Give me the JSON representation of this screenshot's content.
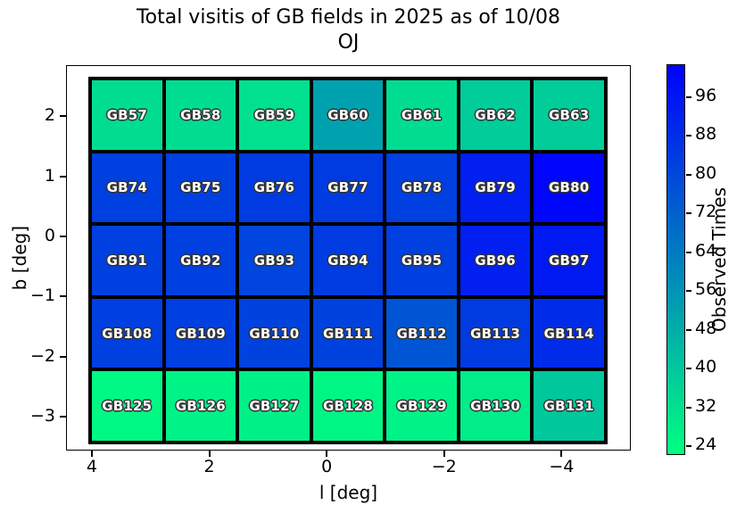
{
  "chart_data": {
    "type": "heatmap",
    "title_line1": "Total visitis of GB fields in 2025 as of 10/08",
    "title_line2": "OJ",
    "xlabel": "l [deg]",
    "ylabel": "b [deg]",
    "colorbar_label": "Observed Times",
    "colormap": "winter_r",
    "colormap_bottom_color": "#00ff80",
    "colormap_top_color": "#0000ff",
    "vmin": 22.2,
    "vmax": 102.8,
    "xlim": [
      4.44,
      -5.18
    ],
    "ylim": [
      -3.56,
      2.85
    ],
    "xticks": [
      4,
      2,
      0,
      -2,
      -4
    ],
    "yticks": [
      2,
      1,
      0,
      -1,
      -2,
      -3
    ],
    "colorbar_ticks": [
      24,
      32,
      40,
      48,
      56,
      64,
      72,
      80,
      88,
      96
    ],
    "grid_extent": {
      "x_left": 4.06,
      "x_right": -4.78,
      "y_top": 2.65,
      "y_bottom": -3.46
    },
    "rows": [
      {
        "cells": [
          {
            "label": "GB57",
            "value": 33
          },
          {
            "label": "GB58",
            "value": 33
          },
          {
            "label": "GB59",
            "value": 32
          },
          {
            "label": "GB60",
            "value": 52
          },
          {
            "label": "GB61",
            "value": 33
          },
          {
            "label": "GB62",
            "value": 38
          },
          {
            "label": "GB63",
            "value": 38
          }
        ]
      },
      {
        "cells": [
          {
            "label": "GB74",
            "value": 83
          },
          {
            "label": "GB75",
            "value": 83
          },
          {
            "label": "GB76",
            "value": 84
          },
          {
            "label": "GB77",
            "value": 84
          },
          {
            "label": "GB78",
            "value": 83
          },
          {
            "label": "GB79",
            "value": 93
          },
          {
            "label": "GB80",
            "value": 101
          }
        ]
      },
      {
        "cells": [
          {
            "label": "GB91",
            "value": 83
          },
          {
            "label": "GB92",
            "value": 83
          },
          {
            "label": "GB93",
            "value": 81
          },
          {
            "label": "GB94",
            "value": 84
          },
          {
            "label": "GB95",
            "value": 83
          },
          {
            "label": "GB96",
            "value": 93
          },
          {
            "label": "GB97",
            "value": 95
          }
        ]
      },
      {
        "cells": [
          {
            "label": "GB108",
            "value": 83
          },
          {
            "label": "GB109",
            "value": 83
          },
          {
            "label": "GB110",
            "value": 82
          },
          {
            "label": "GB111",
            "value": 82
          },
          {
            "label": "GB112",
            "value": 76
          },
          {
            "label": "GB113",
            "value": 84
          },
          {
            "label": "GB114",
            "value": 89
          }
        ]
      },
      {
        "cells": [
          {
            "label": "GB125",
            "value": 24
          },
          {
            "label": "GB126",
            "value": 26
          },
          {
            "label": "GB127",
            "value": 27
          },
          {
            "label": "GB128",
            "value": 25
          },
          {
            "label": "GB129",
            "value": 26
          },
          {
            "label": "GB130",
            "value": 28
          },
          {
            "label": "GB131",
            "value": 40
          }
        ]
      }
    ]
  }
}
